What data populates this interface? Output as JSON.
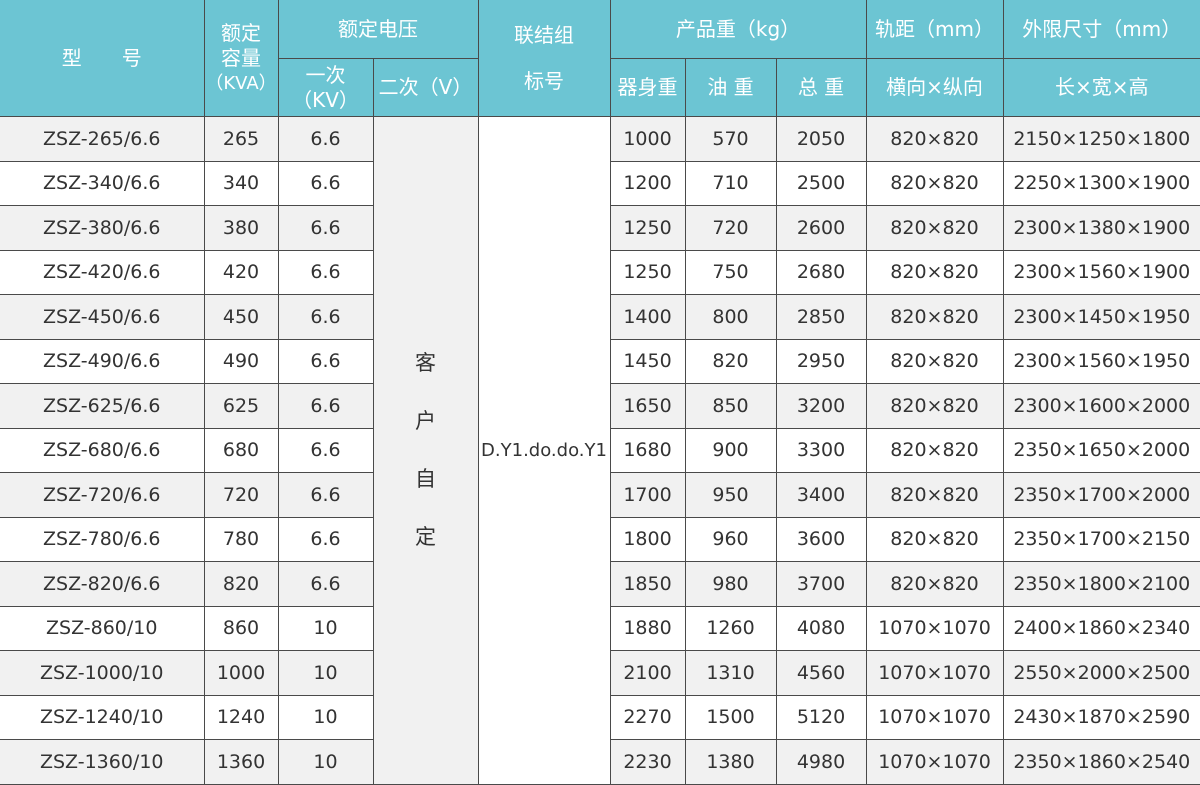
{
  "header": {
    "model": "型　　号",
    "capacity": [
      "额定",
      "容量",
      "（KVA）"
    ],
    "voltage": "额定电压",
    "primary": [
      "一次",
      "（KV）"
    ],
    "secondary": "二次（V）",
    "connection": [
      "联结组",
      "标号"
    ],
    "weight": "产品重（kg）",
    "weight_body": "器身重",
    "weight_oil": "油 重",
    "weight_total": "总 重",
    "gauge": "轨距（mm）",
    "gauge_sub": "横向×纵向",
    "dims": "外限尺寸（mm）",
    "dims_sub": "长×宽×高"
  },
  "secondary_value": [
    "客",
    "户",
    "自",
    "定"
  ],
  "connection_value": "D.Y1.do.do.Y1",
  "colors": {
    "header_bg": "#6cc5d3",
    "row_alt": "#f1f1f1"
  },
  "rows": [
    {
      "model": "ZSZ-265/6.6",
      "kva": "265",
      "kv": "6.6",
      "body": "1000",
      "oil": "570",
      "total": "2050",
      "gauge": "820×820",
      "dims": "2150×1250×1800"
    },
    {
      "model": "ZSZ-340/6.6",
      "kva": "340",
      "kv": "6.6",
      "body": "1200",
      "oil": "710",
      "total": "2500",
      "gauge": "820×820",
      "dims": "2250×1300×1900"
    },
    {
      "model": "ZSZ-380/6.6",
      "kva": "380",
      "kv": "6.6",
      "body": "1250",
      "oil": "720",
      "total": "2600",
      "gauge": "820×820",
      "dims": "2300×1380×1900"
    },
    {
      "model": "ZSZ-420/6.6",
      "kva": "420",
      "kv": "6.6",
      "body": "1250",
      "oil": "750",
      "total": "2680",
      "gauge": "820×820",
      "dims": "2300×1560×1900"
    },
    {
      "model": "ZSZ-450/6.6",
      "kva": "450",
      "kv": "6.6",
      "body": "1400",
      "oil": "800",
      "total": "2850",
      "gauge": "820×820",
      "dims": "2300×1450×1950"
    },
    {
      "model": "ZSZ-490/6.6",
      "kva": "490",
      "kv": "6.6",
      "body": "1450",
      "oil": "820",
      "total": "2950",
      "gauge": "820×820",
      "dims": "2300×1560×1950"
    },
    {
      "model": "ZSZ-625/6.6",
      "kva": "625",
      "kv": "6.6",
      "body": "1650",
      "oil": "850",
      "total": "3200",
      "gauge": "820×820",
      "dims": "2300×1600×2000"
    },
    {
      "model": "ZSZ-680/6.6",
      "kva": "680",
      "kv": "6.6",
      "body": "1680",
      "oil": "900",
      "total": "3300",
      "gauge": "820×820",
      "dims": "2350×1650×2000"
    },
    {
      "model": "ZSZ-720/6.6",
      "kva": "720",
      "kv": "6.6",
      "body": "1700",
      "oil": "950",
      "total": "3400",
      "gauge": "820×820",
      "dims": "2350×1700×2000"
    },
    {
      "model": "ZSZ-780/6.6",
      "kva": "780",
      "kv": "6.6",
      "body": "1800",
      "oil": "960",
      "total": "3600",
      "gauge": "820×820",
      "dims": "2350×1700×2150"
    },
    {
      "model": "ZSZ-820/6.6",
      "kva": "820",
      "kv": "6.6",
      "body": "1850",
      "oil": "980",
      "total": "3700",
      "gauge": "820×820",
      "dims": "2350×1800×2100"
    },
    {
      "model": "ZSZ-860/10",
      "kva": "860",
      "kv": "10",
      "body": "1880",
      "oil": "1260",
      "total": "4080",
      "gauge": "1070×1070",
      "dims": "2400×1860×2340"
    },
    {
      "model": "ZSZ-1000/10",
      "kva": "1000",
      "kv": "10",
      "body": "2100",
      "oil": "1310",
      "total": "4560",
      "gauge": "1070×1070",
      "dims": "2550×2000×2500"
    },
    {
      "model": "ZSZ-1240/10",
      "kva": "1240",
      "kv": "10",
      "body": "2270",
      "oil": "1500",
      "total": "5120",
      "gauge": "1070×1070",
      "dims": "2430×1870×2590"
    },
    {
      "model": "ZSZ-1360/10",
      "kva": "1360",
      "kv": "10",
      "body": "2230",
      "oil": "1380",
      "total": "4980",
      "gauge": "1070×1070",
      "dims": "2350×1860×2540"
    }
  ]
}
